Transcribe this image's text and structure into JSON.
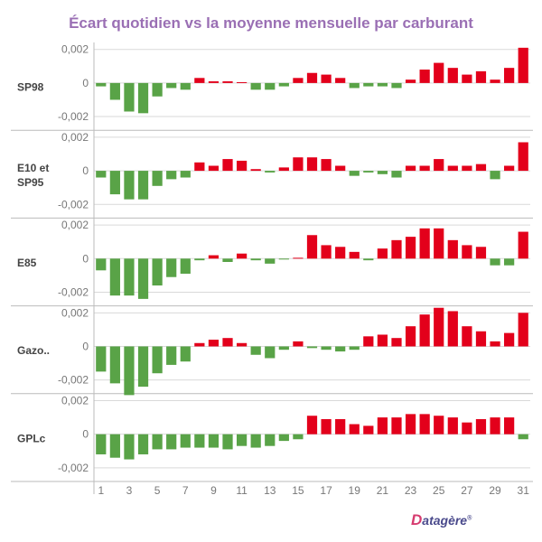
{
  "title": "Écart quotidien vs la moyenne mensuelle par carburant",
  "brand": {
    "initial": "D",
    "rest": "atagère",
    "mark": "®"
  },
  "colors": {
    "positive": "#e3001b",
    "negative": "#59a347",
    "axis": "#bbbbbb",
    "grid": "#d9d9d9",
    "tick": "#777777",
    "label": "#444444"
  },
  "chart_data": {
    "type": "bar",
    "title": "Écart quotidien vs la moyenne mensuelle par carburant",
    "xlabel": "",
    "ylabel": "",
    "ylim": [
      -0.0026,
      0.0022
    ],
    "yticks": [
      0.002,
      0,
      -0.002
    ],
    "ytick_labels": [
      "0,002",
      "0",
      "-0,002"
    ],
    "x": [
      1,
      2,
      3,
      4,
      5,
      6,
      7,
      8,
      9,
      10,
      11,
      12,
      13,
      14,
      15,
      16,
      17,
      18,
      19,
      20,
      21,
      22,
      23,
      24,
      25,
      26,
      27,
      28,
      29,
      30,
      31
    ],
    "xtick_labels": [
      "1",
      "3",
      "5",
      "7",
      "9",
      "11",
      "13",
      "15",
      "17",
      "19",
      "21",
      "23",
      "25",
      "27",
      "29",
      "31"
    ],
    "series": [
      {
        "name": "SP98",
        "values": [
          -0.0002,
          -0.001,
          -0.0017,
          -0.0018,
          -0.0008,
          -0.0003,
          -0.0004,
          0.0003,
          0.0001,
          0.0001,
          5e-05,
          -0.0004,
          -0.0004,
          -0.0002,
          0.0003,
          0.0006,
          0.0005,
          0.0003,
          -0.0003,
          -0.0002,
          -0.0002,
          -0.0003,
          0.0002,
          0.0008,
          0.0012,
          0.0009,
          0.0005,
          0.0007,
          0.0002,
          0.0009,
          0.0021
        ]
      },
      {
        "name": "E10 et SP95",
        "values": [
          -0.0004,
          -0.0014,
          -0.0017,
          -0.0017,
          -0.0009,
          -0.0005,
          -0.0004,
          0.0005,
          0.0003,
          0.0007,
          0.0006,
          0.0001,
          -0.0001,
          0.0002,
          0.0008,
          0.0008,
          0.0007,
          0.0003,
          -0.0003,
          -0.0001,
          -0.0002,
          -0.0004,
          0.0003,
          0.0003,
          0.0007,
          0.0003,
          0.0003,
          0.0004,
          -0.0005,
          0.0003,
          0.0017
        ]
      },
      {
        "name": "E85",
        "values": [
          -0.0007,
          -0.0022,
          -0.0022,
          -0.0024,
          -0.0016,
          -0.0011,
          -0.0009,
          -0.0001,
          0.0002,
          -0.0002,
          0.0003,
          -0.0001,
          -0.0003,
          -5e-05,
          5e-05,
          0.0014,
          0.0008,
          0.0007,
          0.0004,
          -0.0001,
          0.0006,
          0.0011,
          0.0013,
          0.0018,
          0.0018,
          0.0011,
          0.0008,
          0.0007,
          -0.0004,
          -0.0004,
          0.0016
        ]
      },
      {
        "name": "Gazo..",
        "values": [
          -0.0015,
          -0.0022,
          -0.0029,
          -0.0024,
          -0.0016,
          -0.0011,
          -0.0009,
          0.0002,
          0.0004,
          0.0005,
          0.0002,
          -0.0005,
          -0.0007,
          -0.0002,
          0.0003,
          -0.0001,
          -0.0002,
          -0.0003,
          -0.0002,
          0.0006,
          0.0007,
          0.0005,
          0.0012,
          0.0019,
          0.0023,
          0.0021,
          0.0012,
          0.0009,
          0.0003,
          0.0008,
          0.002
        ]
      },
      {
        "name": "GPLc",
        "values": [
          -0.0012,
          -0.0014,
          -0.0015,
          -0.0012,
          -0.0009,
          -0.0009,
          -0.0008,
          -0.0008,
          -0.0008,
          -0.0009,
          -0.0007,
          -0.0008,
          -0.0007,
          -0.0004,
          -0.0003,
          0.0011,
          0.0009,
          0.0009,
          0.0006,
          0.0005,
          0.001,
          0.001,
          0.0012,
          0.0012,
          0.0011,
          0.001,
          0.0007,
          0.0009,
          0.001,
          0.001,
          -0.0003
        ]
      }
    ]
  }
}
